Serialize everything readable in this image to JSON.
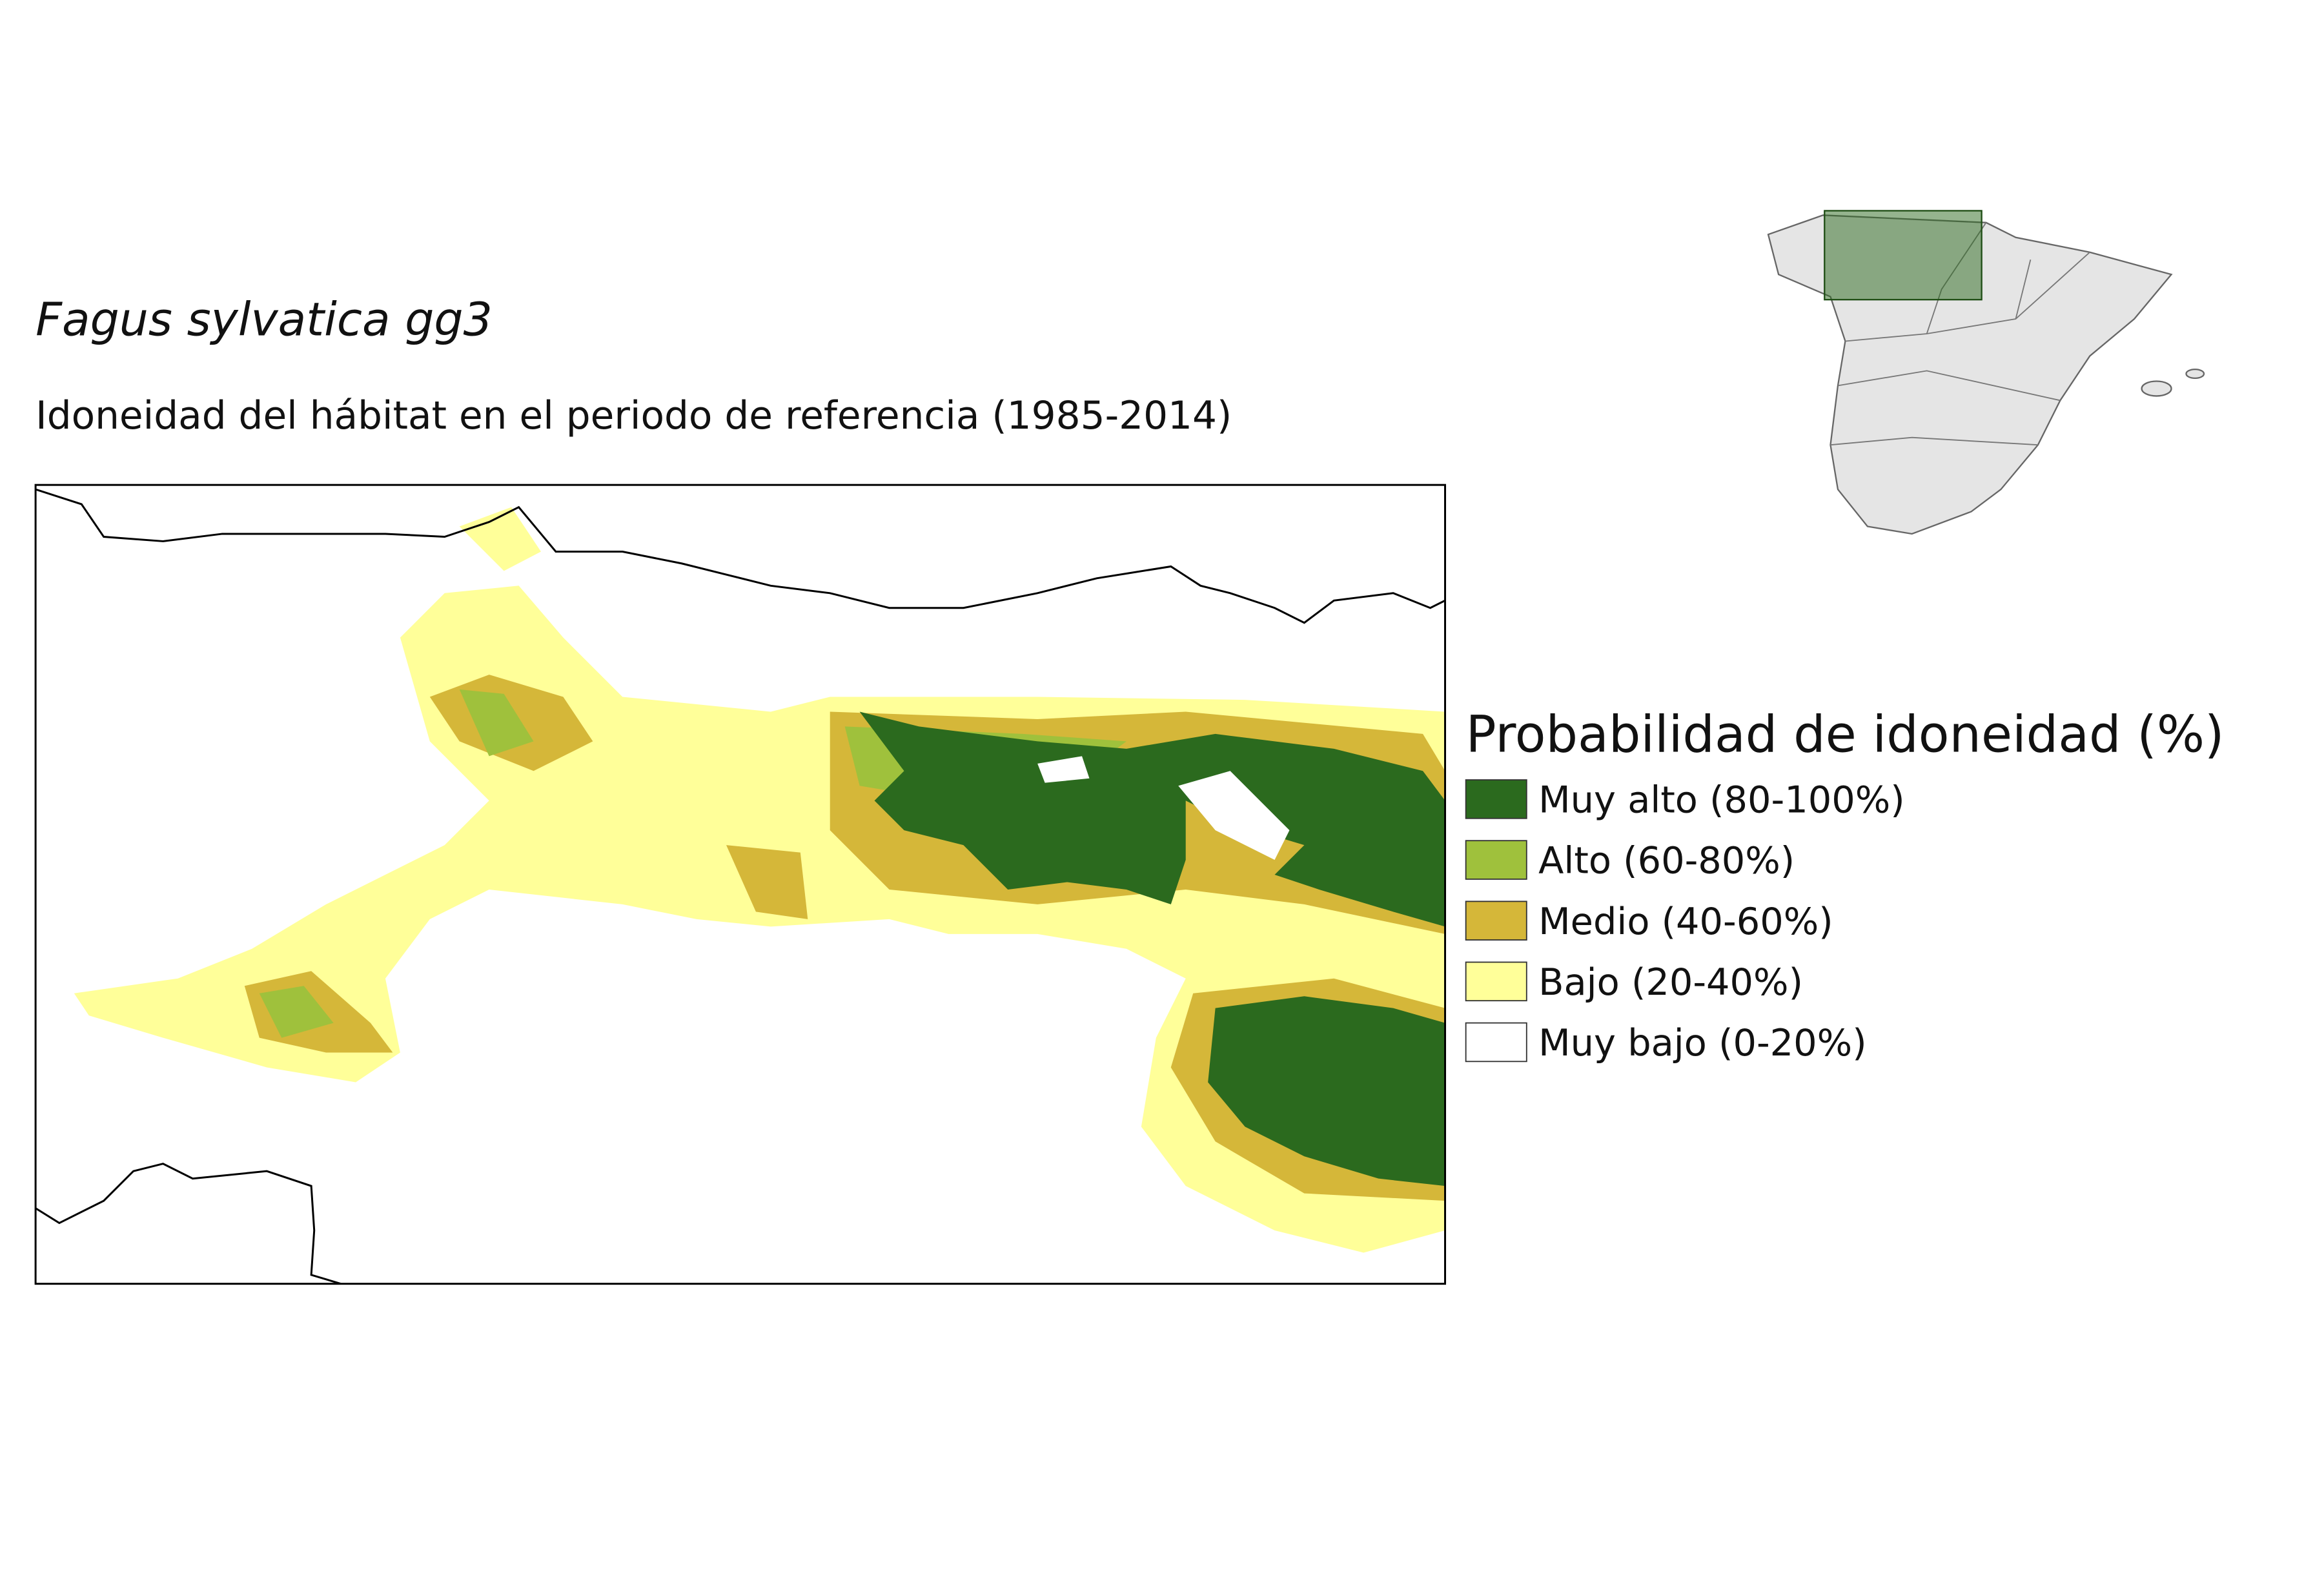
{
  "title": "Fagus sylvatica gg3",
  "subtitle": "Idoneidad del hábitat en el periodo de referencia (1985-2014)",
  "legend": {
    "title": "Probabilidad de idoneidad (%)",
    "items": [
      {
        "label": "Muy alto (80-100%)",
        "color": "#2b6a1e"
      },
      {
        "label": "Alto (60-80%)",
        "color": "#9fc13c"
      },
      {
        "label": "Medio (40-60%)",
        "color": "#d5b739"
      },
      {
        "label": "Bajo (20-40%)",
        "color": "#ffff99"
      },
      {
        "label": "Muy bajo (0-20%)",
        "color": "#ffffff"
      }
    ]
  }
}
